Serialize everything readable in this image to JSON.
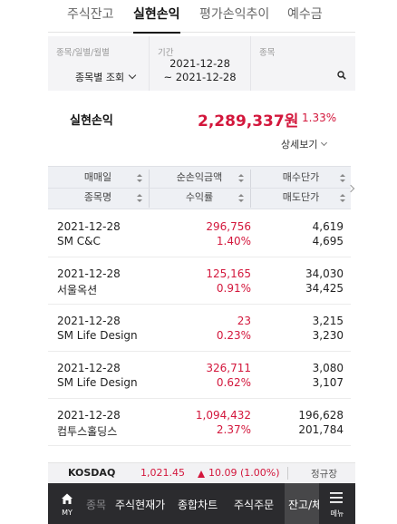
{
  "tabs": [
    {
      "label": "주식잔고",
      "active": false
    },
    {
      "label": "실현손익",
      "active": true
    },
    {
      "label": "평가손익추이",
      "active": false
    },
    {
      "label": "예수금",
      "active": false
    }
  ],
  "filter": {
    "type_label": "종목/일별/월별",
    "type_value": "종목별 조회",
    "period_label": "기간",
    "period_start": "2021-12-28",
    "period_end": "~ 2021-12-28",
    "stock_label": "종목"
  },
  "summary": {
    "label": "실현손익",
    "amount": "2,289,337원",
    "rate": "1.33%",
    "detail_link": "상세보기"
  },
  "table": {
    "headers": {
      "trade_date": "매매일",
      "net_profit": "순손익금액",
      "buy_price": "매수단가",
      "stock_name": "종목명",
      "return_rate": "수익률",
      "sell_price": "매도단가"
    },
    "rows": [
      {
        "date": "2021-12-28",
        "name": "SM C&C",
        "amount": "296,756",
        "rate": "1.40%",
        "buy": "4,619",
        "sell": "4,695"
      },
      {
        "date": "2021-12-28",
        "name": "서울옥션",
        "amount": "125,165",
        "rate": "0.91%",
        "buy": "34,030",
        "sell": "34,425"
      },
      {
        "date": "2021-12-28",
        "name": "SM Life Design",
        "amount": "23",
        "rate": "0.23%",
        "buy": "3,215",
        "sell": "3,230"
      },
      {
        "date": "2021-12-28",
        "name": "SM Life Design",
        "amount": "326,711",
        "rate": "0.62%",
        "buy": "3,080",
        "sell": "3,107"
      },
      {
        "date": "2021-12-28",
        "name": "컴투스홀딩스",
        "amount": "1,094,432",
        "rate": "2.37%",
        "buy": "196,628",
        "sell": "201,784"
      }
    ]
  },
  "ticker": {
    "name": "KOSDAQ",
    "value": "1,021.45",
    "change": "10.09 (1.00%)",
    "session": "정규장"
  },
  "bottom_nav": {
    "home_label": "MY",
    "items": [
      "종목",
      "주식현재가",
      "종합차트",
      "주식주문"
    ],
    "active_label": "잔고/체결",
    "menu_label": "메뉴"
  },
  "colors": {
    "profit_red": "#d3173c",
    "nav_dark": "#2b2b2e"
  }
}
